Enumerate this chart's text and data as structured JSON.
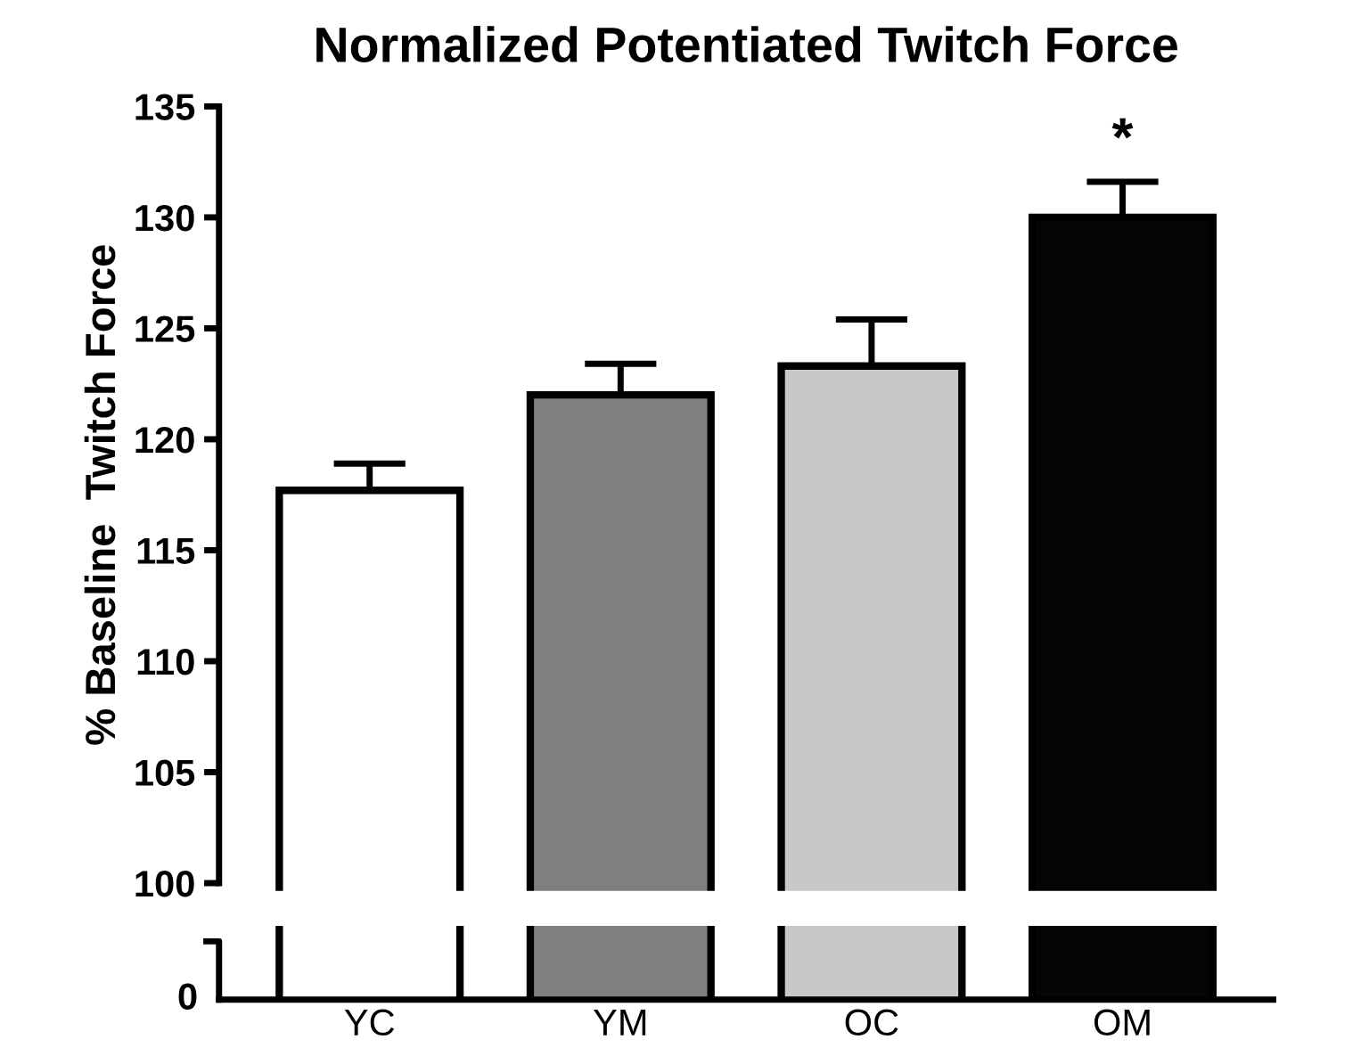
{
  "chart_data": {
    "type": "bar",
    "title": "Normalized Potentiated Twitch Force",
    "ylabel": "% Baseline  Twitch Force",
    "categories": [
      "YC",
      "YM",
      "OC",
      "OM"
    ],
    "colors": [
      "#ffffff",
      "#7f7f7f",
      "#c8c8c8",
      "#050505"
    ],
    "values": [
      117.7,
      122.0,
      123.3,
      130.0
    ],
    "errors": [
      [
        117.7,
        118.9
      ],
      [
        122.0,
        123.4
      ],
      [
        123.3,
        125.4
      ],
      [
        130.0,
        131.6
      ]
    ],
    "ylim": [
      100,
      135
    ],
    "yticks": [
      100,
      105,
      110,
      115,
      120,
      125,
      130,
      135
    ],
    "annotations": [
      "*",
      "0"
    ]
  }
}
